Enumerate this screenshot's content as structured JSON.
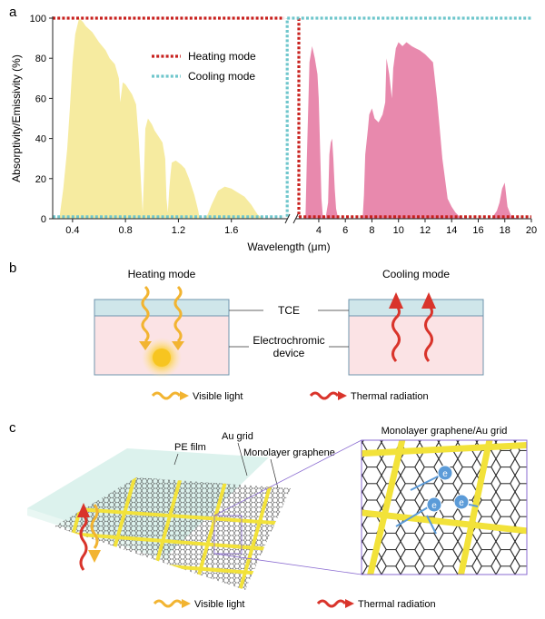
{
  "panel_labels": {
    "a": "a",
    "b": "b",
    "c": "c"
  },
  "colors": {
    "solar_fill": "#f6eba0",
    "ir_fill": "#e889ad",
    "heating_line": "#c8211e",
    "cooling_line": "#6fc6cc",
    "tce_layer": "#cfe6ea",
    "device_layer": "#fbe3e5",
    "visible_arrow": "#f2b431",
    "thermal_arrow": "#d9342b",
    "grid_yellow": "#f2e23a",
    "electron": "#5b9bd8",
    "film": "#bfe7de"
  },
  "chart_data": {
    "type": "area",
    "xlabel": "Wavelength (μm)",
    "ylabel": "Absorptivity/Emissivity (%)",
    "ylim": [
      0,
      100
    ],
    "x_break": true,
    "left_axis": {
      "xlim": [
        0.25,
        2.0
      ],
      "ticks": [
        "0.4",
        "0.8",
        "1.2",
        "1.6"
      ]
    },
    "right_axis": {
      "xlim": [
        2.5,
        20
      ],
      "ticks": [
        "4",
        "6",
        "8",
        "10",
        "12",
        "14",
        "16",
        "18",
        "20"
      ]
    },
    "y_ticks": [
      "0",
      "20",
      "40",
      "60",
      "80",
      "100"
    ],
    "legend_position": "top-center",
    "series": [
      {
        "name": "Heating mode",
        "style": "dotted",
        "segments": [
          {
            "x": [
              0.25,
              2.0
            ],
            "y": [
              100,
              100
            ]
          },
          {
            "x": [
              2.5,
              2.5
            ],
            "y": [
              100,
              1
            ]
          },
          {
            "x": [
              2.5,
              20
            ],
            "y": [
              1,
              1
            ]
          }
        ]
      },
      {
        "name": "Cooling mode",
        "style": "dotted",
        "segments": [
          {
            "x": [
              0.25,
              2.0
            ],
            "y": [
              1,
              1
            ]
          },
          {
            "x": [
              2.1,
              2.1
            ],
            "y": [
              1,
              100
            ]
          },
          {
            "x": [
              2.1,
              20
            ],
            "y": [
              100,
              100
            ]
          }
        ]
      }
    ],
    "solar_spectrum": {
      "x": [
        0.3,
        0.33,
        0.36,
        0.38,
        0.4,
        0.42,
        0.45,
        0.48,
        0.5,
        0.55,
        0.6,
        0.65,
        0.68,
        0.72,
        0.75,
        0.76,
        0.78,
        0.8,
        0.85,
        0.88,
        0.9,
        0.92,
        0.93,
        0.94,
        0.95,
        0.97,
        1.0,
        1.02,
        1.05,
        1.08,
        1.1,
        1.11,
        1.12,
        1.13,
        1.14,
        1.15,
        1.18,
        1.22,
        1.25,
        1.28,
        1.32,
        1.35,
        1.36,
        1.38,
        1.4,
        1.42,
        1.45,
        1.5,
        1.55,
        1.6,
        1.65,
        1.7,
        1.75,
        1.78,
        1.8,
        1.82,
        1.84
      ],
      "y": [
        0,
        15,
        35,
        55,
        78,
        92,
        100,
        98,
        96,
        93,
        88,
        84,
        80,
        77,
        70,
        58,
        68,
        67,
        62,
        57,
        40,
        15,
        3,
        22,
        45,
        50,
        47,
        44,
        41,
        38,
        30,
        10,
        3,
        14,
        22,
        28,
        29,
        27,
        25,
        20,
        12,
        4,
        0,
        0,
        0,
        2,
        7,
        14,
        16,
        15,
        13,
        11,
        7,
        4,
        2,
        1,
        0
      ]
    },
    "ir_spectrum": {
      "x": [
        3.0,
        3.1,
        3.3,
        3.5,
        3.7,
        3.9,
        4.0,
        4.1,
        4.2,
        4.3,
        4.5,
        4.7,
        4.8,
        4.9,
        5.0,
        5.1,
        5.2,
        5.3,
        5.4,
        5.5,
        5.6,
        7.3,
        7.4,
        7.5,
        7.7,
        7.8,
        8.0,
        8.2,
        8.5,
        8.8,
        9.0,
        9.1,
        9.3,
        9.5,
        9.6,
        9.8,
        10.0,
        10.3,
        10.6,
        11.0,
        11.3,
        11.6,
        12.0,
        12.3,
        12.6,
        12.9,
        13.1,
        13.3,
        13.5,
        13.7,
        14.0,
        14.3,
        14.6,
        15.0,
        15.5,
        16.0,
        16.5,
        17.0,
        17.4,
        17.6,
        17.8,
        18.0,
        18.2,
        18.5,
        19.0
      ],
      "y": [
        0,
        30,
        78,
        86,
        80,
        72,
        60,
        35,
        10,
        2,
        0,
        8,
        32,
        38,
        40,
        30,
        15,
        5,
        2,
        0,
        0,
        0,
        12,
        32,
        45,
        52,
        55,
        50,
        48,
        52,
        58,
        80,
        72,
        60,
        75,
        85,
        88,
        86,
        88,
        86,
        85,
        84,
        82,
        80,
        78,
        60,
        45,
        30,
        20,
        10,
        6,
        3,
        1,
        0,
        0,
        0,
        0,
        0,
        4,
        8,
        15,
        18,
        6,
        1,
        0
      ]
    }
  },
  "panel_b": {
    "heating_title": "Heating mode",
    "cooling_title": "Cooling mode",
    "tce_label": "TCE",
    "device_label_line1": "Electrochromic",
    "device_label_line2": "device",
    "legend_visible": "Visible light",
    "legend_thermal": "Thermal radiation"
  },
  "panel_c": {
    "pe_film": "PE film",
    "au_grid": "Au grid",
    "graphene": "Monolayer graphene",
    "zoom_title": "Monolayer graphene/Au grid",
    "electron_symbol": "e",
    "legend_visible": "Visible light",
    "legend_thermal": "Thermal radiation"
  }
}
